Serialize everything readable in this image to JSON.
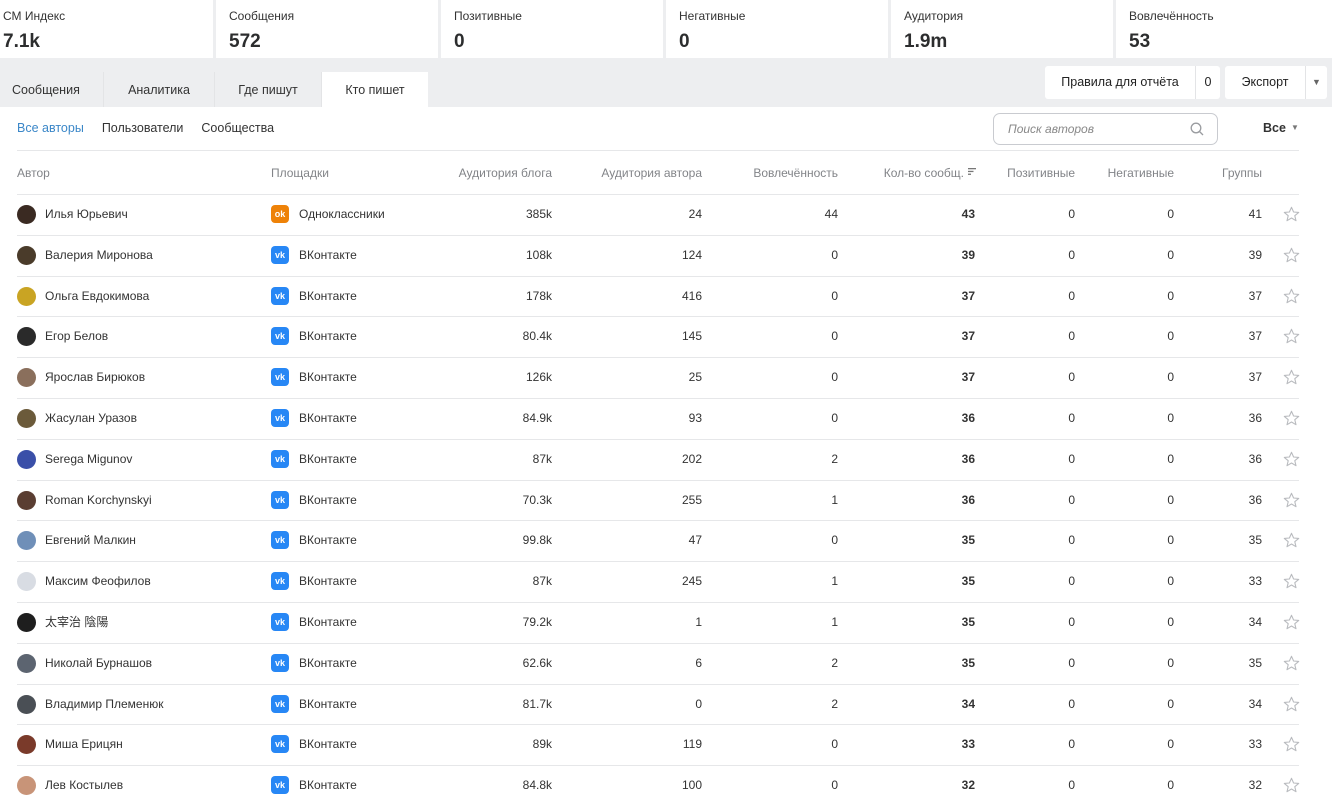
{
  "stats": [
    {
      "label": "СМ Индекс",
      "value": "7.1k"
    },
    {
      "label": "Сообщения",
      "value": "572"
    },
    {
      "label": "Позитивные",
      "value": "0"
    },
    {
      "label": "Негативные",
      "value": "0"
    },
    {
      "label": "Аудитория",
      "value": "1.9m"
    },
    {
      "label": "Вовлечённость",
      "value": "53"
    }
  ],
  "tabs": [
    "Сообщения",
    "Аналитика",
    "Где пишут",
    "Кто пишет"
  ],
  "buttons": {
    "rules": "Правила для отчёта",
    "rules_count": "0",
    "export": "Экспорт"
  },
  "subnav": [
    "Все авторы",
    "Пользователи",
    "Сообщества"
  ],
  "search": {
    "placeholder": "Поиск авторов"
  },
  "filter": {
    "label": "Все"
  },
  "columns": {
    "author": "Автор",
    "platform": "Площадки",
    "blog_audience": "Аудитория блога",
    "author_audience": "Аудитория автора",
    "engagement": "Вовлечённость",
    "messages": "Кол-во сообщ.",
    "positive": "Позитивные",
    "negative": "Негативные",
    "groups": "Группы"
  },
  "rows": [
    {
      "name": "Илья Юрьевич",
      "platform": "Одноклассники",
      "platform_icon": "ok-icon",
      "blog": "385k",
      "aud": "24",
      "eng": "44",
      "msgs": "43",
      "pos": "0",
      "neg": "0",
      "groups": "41",
      "avatar_color": "#3a2a22"
    },
    {
      "name": "Валерия Миронова",
      "platform": "ВКонтакте",
      "platform_icon": "vk-icon",
      "blog": "108k",
      "aud": "124",
      "eng": "0",
      "msgs": "39",
      "pos": "0",
      "neg": "0",
      "groups": "39",
      "avatar_color": "#4a3b2a"
    },
    {
      "name": "Ольга Евдокимова",
      "platform": "ВКонтакте",
      "platform_icon": "vk-icon",
      "blog": "178k",
      "aud": "416",
      "eng": "0",
      "msgs": "37",
      "pos": "0",
      "neg": "0",
      "groups": "37",
      "avatar_color": "#c9a423"
    },
    {
      "name": "Егор Белов",
      "platform": "ВКонтакте",
      "platform_icon": "vk-icon",
      "blog": "80.4k",
      "aud": "145",
      "eng": "0",
      "msgs": "37",
      "pos": "0",
      "neg": "0",
      "groups": "37",
      "avatar_color": "#2a2a2a"
    },
    {
      "name": "Ярослав Бирюков",
      "platform": "ВКонтакте",
      "platform_icon": "vk-icon",
      "blog": "126k",
      "aud": "25",
      "eng": "0",
      "msgs": "37",
      "pos": "0",
      "neg": "0",
      "groups": "37",
      "avatar_color": "#8a6f5c"
    },
    {
      "name": "Жасулан Уразов",
      "platform": "ВКонтакте",
      "platform_icon": "vk-icon",
      "blog": "84.9k",
      "aud": "93",
      "eng": "0",
      "msgs": "36",
      "pos": "0",
      "neg": "0",
      "groups": "36",
      "avatar_color": "#6b5a3a"
    },
    {
      "name": "Serega Migunov",
      "platform": "ВКонтакте",
      "platform_icon": "vk-icon",
      "blog": "87k",
      "aud": "202",
      "eng": "2",
      "msgs": "36",
      "pos": "0",
      "neg": "0",
      "groups": "36",
      "avatar_color": "#3a4fa8"
    },
    {
      "name": "Roman Korchynskyi",
      "platform": "ВКонтакте",
      "platform_icon": "vk-icon",
      "blog": "70.3k",
      "aud": "255",
      "eng": "1",
      "msgs": "36",
      "pos": "0",
      "neg": "0",
      "groups": "36",
      "avatar_color": "#5a3e32"
    },
    {
      "name": "Евгений Малкин",
      "platform": "ВКонтакте",
      "platform_icon": "vk-icon",
      "blog": "99.8k",
      "aud": "47",
      "eng": "0",
      "msgs": "35",
      "pos": "0",
      "neg": "0",
      "groups": "35",
      "avatar_color": "#6f8fb8"
    },
    {
      "name": "Максим Феофилов",
      "platform": "ВКонтакте",
      "platform_icon": "vk-icon",
      "blog": "87k",
      "aud": "245",
      "eng": "1",
      "msgs": "35",
      "pos": "0",
      "neg": "0",
      "groups": "33",
      "avatar_color": "#d8dce3"
    },
    {
      "name": "太宰治 陰陽",
      "platform": "ВКонтакте",
      "platform_icon": "vk-icon",
      "blog": "79.2k",
      "aud": "1",
      "eng": "1",
      "msgs": "35",
      "pos": "0",
      "neg": "0",
      "groups": "34",
      "avatar_color": "#1e1e1e"
    },
    {
      "name": "Николай Бурнашов",
      "platform": "ВКонтакте",
      "platform_icon": "vk-icon",
      "blog": "62.6k",
      "aud": "6",
      "eng": "2",
      "msgs": "35",
      "pos": "0",
      "neg": "0",
      "groups": "35",
      "avatar_color": "#5c6470"
    },
    {
      "name": "Владимир Племенюк",
      "platform": "ВКонтакте",
      "platform_icon": "vk-icon",
      "blog": "81.7k",
      "aud": "0",
      "eng": "2",
      "msgs": "34",
      "pos": "0",
      "neg": "0",
      "groups": "34",
      "avatar_color": "#4a4f55"
    },
    {
      "name": "Миша Ерицян",
      "platform": "ВКонтакте",
      "platform_icon": "vk-icon",
      "blog": "89k",
      "aud": "119",
      "eng": "0",
      "msgs": "33",
      "pos": "0",
      "neg": "0",
      "groups": "33",
      "avatar_color": "#7a3a2a"
    },
    {
      "name": "Лев Костылев",
      "platform": "ВКонтакте",
      "platform_icon": "vk-icon",
      "blog": "84.8k",
      "aud": "100",
      "eng": "0",
      "msgs": "32",
      "pos": "0",
      "neg": "0",
      "groups": "32",
      "avatar_color": "#c89478"
    }
  ]
}
